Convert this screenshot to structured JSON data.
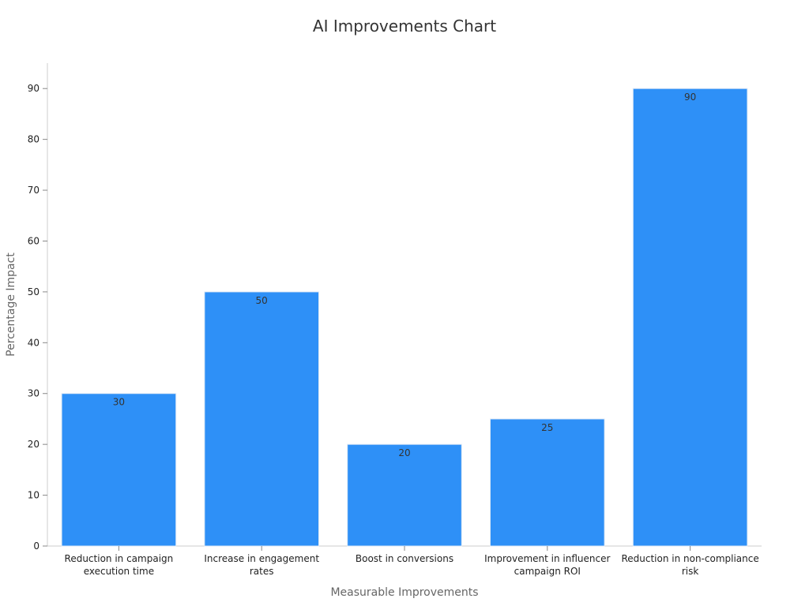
{
  "chart_data": {
    "type": "bar",
    "title": "AI Improvements Chart",
    "xlabel": "Measurable Improvements",
    "ylabel": "Percentage Impact",
    "categories": [
      "Reduction in campaign execution time",
      "Increase in engagement rates",
      "Boost in conversions",
      "Improvement in influencer campaign ROI",
      "Reduction in non-compliance risk"
    ],
    "category_label_lines": [
      [
        "Reduction in campaign",
        "execution time"
      ],
      [
        "Increase in engagement",
        "rates"
      ],
      [
        "Boost in conversions"
      ],
      [
        "Improvement in influencer",
        "campaign ROI"
      ],
      [
        "Reduction in non-compliance",
        "risk"
      ]
    ],
    "values": [
      30,
      50,
      20,
      25,
      90
    ],
    "data_labels": [
      "30",
      "50",
      "20",
      "25",
      "90"
    ],
    "ylim": [
      0,
      95
    ],
    "yticks": [
      0,
      10,
      20,
      30,
      40,
      50,
      60,
      70,
      80,
      90
    ],
    "grid": false,
    "legend": "none",
    "bar_color": "#2e90f7"
  }
}
